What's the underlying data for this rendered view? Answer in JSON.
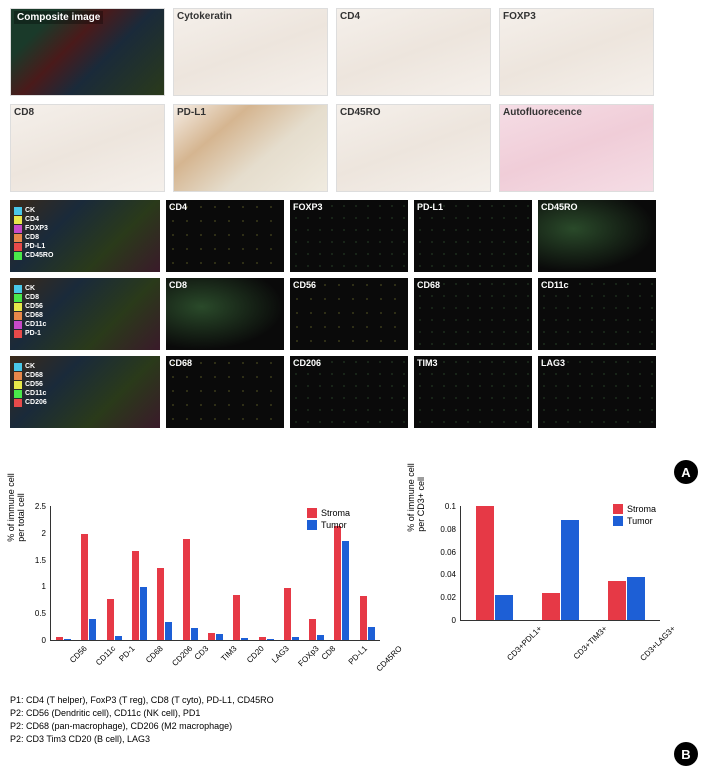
{
  "panelA": {
    "top_panels_row1": [
      {
        "label": "Composite image",
        "tex": "tex-comp",
        "label_class": "composite-label"
      },
      {
        "label": "Cytokeratin",
        "tex": "tex-light"
      },
      {
        "label": "CD4",
        "tex": "tex-light"
      },
      {
        "label": "FOXP3",
        "tex": "tex-light"
      }
    ],
    "top_panels_row2": [
      {
        "label": "CD8",
        "tex": "tex-light"
      },
      {
        "label": "PD-L1",
        "tex": "tex-brown"
      },
      {
        "label": "CD45RO",
        "tex": "tex-light"
      },
      {
        "label": "Autofluorecence",
        "tex": "tex-pink"
      }
    ],
    "mid_rows": [
      {
        "legend": [
          {
            "color": "#4ac8e8",
            "txt": "CK"
          },
          {
            "color": "#e8e84a",
            "txt": "CD4"
          },
          {
            "color": "#c84ac8",
            "txt": "FOXP3"
          },
          {
            "color": "#e8884a",
            "txt": "CD8"
          },
          {
            "color": "#e84a4a",
            "txt": "PD-L1"
          },
          {
            "color": "#4ae84a",
            "txt": "CD45RO"
          }
        ],
        "panels": [
          {
            "label": "CD4",
            "tex": "tex-dark-y"
          },
          {
            "label": "FOXP3",
            "tex": "tex-dark-s"
          },
          {
            "label": "PD-L1",
            "tex": "tex-dark-s"
          },
          {
            "label": "CD45RO",
            "tex": "tex-dark-g"
          }
        ]
      },
      {
        "legend": [
          {
            "color": "#4ac8e8",
            "txt": "CK"
          },
          {
            "color": "#4ae84a",
            "txt": "CD8"
          },
          {
            "color": "#e8e84a",
            "txt": "CD56"
          },
          {
            "color": "#e8884a",
            "txt": "CD68"
          },
          {
            "color": "#c84ac8",
            "txt": "CD11c"
          },
          {
            "color": "#e84a4a",
            "txt": "PD-1"
          }
        ],
        "panels": [
          {
            "label": "CD8",
            "tex": "tex-dark-g"
          },
          {
            "label": "CD56",
            "tex": "tex-dark-y"
          },
          {
            "label": "CD68",
            "tex": "tex-dark-s"
          },
          {
            "label": "CD11c",
            "tex": "tex-dark-s"
          }
        ]
      },
      {
        "legend": [
          {
            "color": "#4ac8e8",
            "txt": "CK"
          },
          {
            "color": "#e8884a",
            "txt": "CD68"
          },
          {
            "color": "#e8e84a",
            "txt": "CD56"
          },
          {
            "color": "#4ae84a",
            "txt": "CD11c"
          },
          {
            "color": "#e84a4a",
            "txt": "CD206"
          }
        ],
        "panels": [
          {
            "label": "CD68",
            "tex": "tex-dark-y"
          },
          {
            "label": "CD206",
            "tex": "tex-dark-s"
          },
          {
            "label": "TIM3",
            "tex": "tex-dark-s"
          },
          {
            "label": "LAG3",
            "tex": "tex-dark-s"
          }
        ]
      }
    ]
  },
  "colors": {
    "stroma": "#e63946",
    "tumor": "#1d5fd6"
  },
  "chart_left": {
    "type": "bar",
    "ylabel": "% of immune cell\nper total cell",
    "ylim": [
      0,
      2.5
    ],
    "ytick_step": 0.5,
    "categories": [
      "CD56",
      "CD11c",
      "PD-1",
      "CD68",
      "CD206",
      "CD3",
      "TIM3",
      "CD20",
      "LAG3",
      "FOXp3",
      "CD8",
      "PD-L1",
      "CD45RO"
    ],
    "stroma": [
      0.06,
      1.97,
      0.77,
      1.67,
      1.35,
      1.89,
      0.13,
      0.84,
      0.06,
      0.97,
      0.4,
      2.12,
      0.82
    ],
    "tumor": [
      0.02,
      0.4,
      0.07,
      0.98,
      0.33,
      0.22,
      0.11,
      0.03,
      0.02,
      0.05,
      0.09,
      1.84,
      0.24
    ],
    "legend": [
      "Stroma",
      "Tumor"
    ]
  },
  "chart_right": {
    "type": "bar",
    "ylabel": "% of immune cell\nper CD3+ cell",
    "ylim": [
      0,
      0.1
    ],
    "ytick_step": 0.02,
    "categories": [
      "CD3+PDL1+",
      "CD3+TIM3+",
      "CD3+LAG3+"
    ],
    "stroma": [
      0.1,
      0.024,
      0.034
    ],
    "tumor": [
      0.022,
      0.088,
      0.038
    ],
    "legend": [
      "Stroma",
      "Tumor"
    ]
  },
  "notes": [
    "P1: CD4 (T helper), FoxP3 (T reg), CD8 (T cyto), PD-L1, CD45RO",
    "P2: CD56 (Dendritic cell), CD11c (NK cell), PD1",
    "P2: CD68 (pan-macrophage), CD206 (M2 macrophage)",
    "P2: CD3 Tim3 CD20 (B cell), LAG3"
  ],
  "badges": {
    "a": "A",
    "b": "B"
  }
}
